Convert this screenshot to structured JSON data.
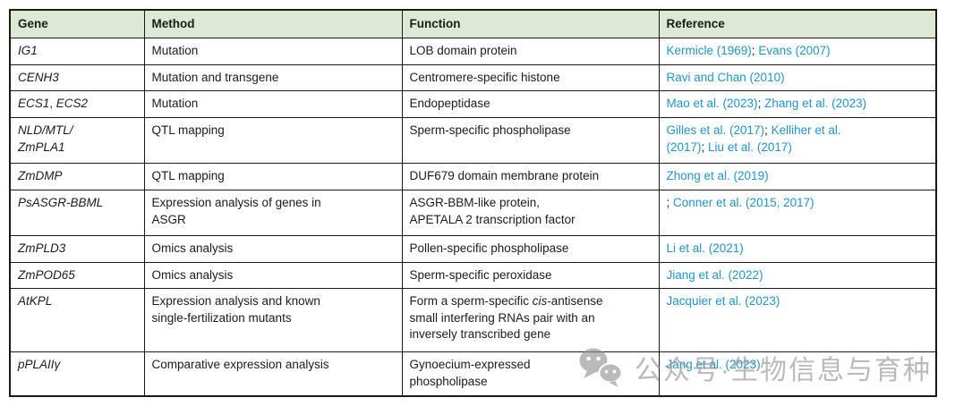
{
  "colors": {
    "header_bg": "#dee9d5",
    "link": "#2095cc",
    "border": "#1a1a1a",
    "text": "#1b1b1b",
    "watermark": "#909090"
  },
  "table": {
    "columns": [
      "Gene",
      "Method",
      "Function",
      "Reference"
    ],
    "rows": [
      {
        "gene": [
          {
            "t": "IG1",
            "i": true
          }
        ],
        "method": [
          {
            "t": "Mutation"
          }
        ],
        "function": [
          {
            "t": "LOB domain protein"
          }
        ],
        "reference": [
          {
            "t": "Kermicle (1969)",
            "link": true
          },
          {
            "t": "; "
          },
          {
            "t": "Evans (2007)",
            "link": true
          }
        ]
      },
      {
        "gene": [
          {
            "t": "CENH3",
            "i": true
          }
        ],
        "method": [
          {
            "t": "Mutation and transgene"
          }
        ],
        "function": [
          {
            "t": "Centromere-specific histone"
          }
        ],
        "reference": [
          {
            "t": "Ravi and Chan (2010)",
            "link": true
          }
        ]
      },
      {
        "gene": [
          {
            "t": "ECS1",
            "i": true
          },
          {
            "t": ", "
          },
          {
            "t": "ECS2",
            "i": true
          }
        ],
        "method": [
          {
            "t": "Mutation"
          }
        ],
        "function": [
          {
            "t": "Endopeptidase"
          }
        ],
        "reference": [
          {
            "t": "Mao et al. (2023)",
            "link": true
          },
          {
            "t": "; "
          },
          {
            "t": "Zhang et al. (2023)",
            "link": true
          }
        ]
      },
      {
        "gene": [
          {
            "t": "NLD/MTL/",
            "i": true
          },
          {
            "br": true
          },
          {
            "t": "ZmPLA1",
            "i": true
          }
        ],
        "method": [
          {
            "t": "QTL mapping"
          }
        ],
        "function": [
          {
            "t": "Sperm-specific phospholipase"
          }
        ],
        "reference": [
          {
            "t": "Gilles et al. (2017)",
            "link": true
          },
          {
            "t": "; "
          },
          {
            "t": "Kelliher et al.",
            "link": true
          },
          {
            "br": true
          },
          {
            "t": "(2017)",
            "link": true
          },
          {
            "t": "; "
          },
          {
            "t": "Liu et al. (2017)",
            "link": true
          }
        ]
      },
      {
        "gene": [
          {
            "t": "ZmDMP",
            "i": true
          }
        ],
        "method": [
          {
            "t": "QTL mapping"
          }
        ],
        "function": [
          {
            "t": "DUF679 domain membrane protein"
          }
        ],
        "reference": [
          {
            "t": "Zhong et al. (2019)",
            "link": true
          }
        ]
      },
      {
        "gene": [
          {
            "t": "PsASGR-BBML",
            "i": true
          }
        ],
        "method": [
          {
            "t": "Expression analysis of genes in"
          },
          {
            "br": true
          },
          {
            "t": "ASGR"
          }
        ],
        "function": [
          {
            "t": "ASGR-BBM-like protein,"
          },
          {
            "br": true
          },
          {
            "t": "APETALA 2 transcription factor"
          }
        ],
        "reference": [
          {
            "t": "; "
          },
          {
            "t": "Conner et al. (2015, 2017)",
            "link": true
          }
        ]
      },
      {
        "gene": [
          {
            "t": "ZmPLD3",
            "i": true
          }
        ],
        "method": [
          {
            "t": "Omics analysis"
          }
        ],
        "function": [
          {
            "t": "Pollen-specific phospholipase"
          }
        ],
        "reference": [
          {
            "t": "Li et al. (2021)",
            "link": true
          }
        ]
      },
      {
        "gene": [
          {
            "t": "ZmPOD65",
            "i": true
          }
        ],
        "method": [
          {
            "t": "Omics analysis"
          }
        ],
        "function": [
          {
            "t": "Sperm-specific peroxidase"
          }
        ],
        "reference": [
          {
            "t": "Jiang et al. (2022)",
            "link": true
          }
        ]
      },
      {
        "gene": [
          {
            "t": "AtKPL",
            "i": true
          }
        ],
        "method": [
          {
            "t": "Expression analysis and known"
          },
          {
            "br": true
          },
          {
            "t": "single-fertilization mutants"
          }
        ],
        "function": [
          {
            "t": "Form a sperm-specific "
          },
          {
            "t": "cis",
            "i": true
          },
          {
            "t": "-antisense"
          },
          {
            "br": true
          },
          {
            "t": "small interfering RNAs pair with an"
          },
          {
            "br": true
          },
          {
            "t": "inversely transcribed gene"
          }
        ],
        "reference": [
          {
            "t": "Jacquier et al. (2023)",
            "link": true
          }
        ]
      },
      {
        "gene": [
          {
            "t": "pPLAIIγ",
            "i": true
          }
        ],
        "method": [
          {
            "t": "Comparative expression analysis"
          }
        ],
        "function": [
          {
            "t": "Gynoecium-expressed"
          },
          {
            "br": true
          },
          {
            "t": "phospholipase"
          }
        ],
        "reference": [
          {
            "t": "Jang et al. (2023)",
            "link": true
          }
        ]
      }
    ]
  },
  "watermark": {
    "icon": "wechat-chat-bubbles-icon",
    "text": "公众号·生物信息与育种"
  }
}
